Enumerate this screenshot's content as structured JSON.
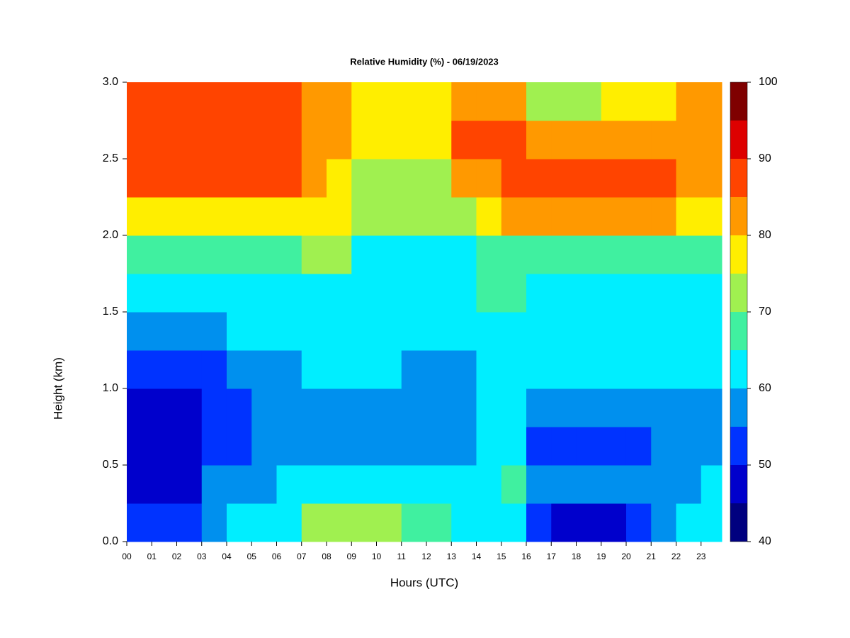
{
  "chart_data": {
    "type": "heatmap",
    "title": "Relative Humidity (%) - 06/19/2023",
    "x_label": "Hours (UTC)",
    "y_label": "Height (km)",
    "x": [
      0,
      1,
      2,
      3,
      4,
      5,
      6,
      7,
      8,
      9,
      10,
      11,
      12,
      13,
      14,
      15,
      16,
      17,
      18,
      19,
      20,
      21,
      22,
      23
    ],
    "y": [
      0,
      0.25,
      0.5,
      0.75,
      1,
      1.25,
      1.5,
      1.75,
      2,
      2.25,
      2.5,
      2.75
    ],
    "z": [
      [
        53,
        53,
        53,
        55,
        62,
        62,
        62,
        70,
        71,
        72,
        70,
        66,
        66,
        64,
        64,
        60,
        50,
        48,
        48,
        48,
        50,
        55,
        62,
        62
      ],
      [
        47,
        47,
        47,
        55,
        58,
        58,
        64,
        64,
        64,
        64,
        64,
        62,
        62,
        62,
        62,
        66,
        55,
        55,
        55,
        55,
        55,
        58,
        58,
        60
      ],
      [
        45,
        45,
        45,
        53,
        52,
        58,
        58,
        58,
        58,
        58,
        58,
        58,
        58,
        58,
        60,
        64,
        53,
        53,
        53,
        53,
        53,
        58,
        58,
        58
      ],
      [
        48,
        48,
        48,
        53,
        53,
        58,
        58,
        58,
        58,
        58,
        58,
        58,
        58,
        58,
        60,
        64,
        56,
        56,
        56,
        56,
        56,
        58,
        58,
        58
      ],
      [
        53,
        53,
        53,
        53,
        58,
        58,
        58,
        60,
        60,
        60,
        60,
        57,
        57,
        57,
        62,
        62,
        60,
        60,
        60,
        60,
        60,
        60,
        60,
        60
      ],
      [
        57,
        57,
        57,
        57,
        62,
        62,
        62,
        62,
        62,
        62,
        62,
        62,
        62,
        62,
        63,
        63,
        62,
        62,
        62,
        62,
        62,
        62,
        62,
        62
      ],
      [
        60,
        60,
        60,
        64,
        64,
        64,
        64,
        63,
        63,
        63,
        63,
        63,
        63,
        63,
        66,
        66,
        64,
        64,
        64,
        64,
        64,
        64,
        64,
        64
      ],
      [
        67,
        67,
        67,
        67,
        67,
        67,
        67,
        70,
        70,
        64,
        64,
        64,
        64,
        64,
        66,
        68,
        68,
        68,
        68,
        68,
        68,
        67,
        67,
        67
      ],
      [
        78,
        78,
        78,
        78,
        78,
        78,
        78,
        76,
        76,
        72,
        72,
        72,
        72,
        72,
        76,
        82,
        82,
        82,
        82,
        82,
        82,
        82,
        78,
        78
      ],
      [
        87,
        87,
        87,
        87,
        87,
        87,
        87,
        82,
        78,
        74,
        74,
        74,
        74,
        80,
        80,
        86,
        86,
        86,
        86,
        86,
        86,
        86,
        82,
        82
      ],
      [
        88,
        88,
        88,
        88,
        88,
        88,
        88,
        80,
        80,
        75,
        75,
        75,
        75,
        85,
        85,
        85,
        80,
        80,
        80,
        80,
        80,
        80,
        82,
        82
      ],
      [
        89,
        89,
        89,
        89,
        89,
        89,
        89,
        82,
        82,
        76,
        76,
        76,
        76,
        84,
        84,
        84,
        70,
        70,
        70,
        78,
        78,
        78,
        82,
        82
      ]
    ],
    "levels": [
      40,
      45,
      50,
      55,
      60,
      65,
      70,
      75,
      80,
      85,
      90,
      95,
      100
    ],
    "colors": [
      "#00007f",
      "#0000cc",
      "#0033ff",
      "#0090ee",
      "#00eeff",
      "#40f0a0",
      "#a0f050",
      "#ffee00",
      "#ff9900",
      "#ff4400",
      "#dd0000",
      "#7f0000"
    ],
    "xlim": [
      0,
      23.83
    ],
    "ylim": [
      0,
      3
    ],
    "xticks": [
      {
        "value": 0,
        "label": "00"
      },
      {
        "value": 1,
        "label": "01"
      },
      {
        "value": 2,
        "label": "02"
      },
      {
        "value": 3,
        "label": "03"
      },
      {
        "value": 4,
        "label": "04"
      },
      {
        "value": 5,
        "label": "05"
      },
      {
        "value": 6,
        "label": "06"
      },
      {
        "value": 7,
        "label": "07"
      },
      {
        "value": 8,
        "label": "08"
      },
      {
        "value": 9,
        "label": "09"
      },
      10,
      11,
      12,
      13,
      14,
      15,
      16,
      17,
      18,
      19,
      20,
      21,
      22,
      23
    ],
    "yticks": [
      {
        "value": 0,
        "label": "0.0"
      },
      0.5,
      {
        "value": 1,
        "label": "1.0"
      },
      1.5,
      {
        "value": 2,
        "label": "2.0"
      },
      2.5,
      {
        "value": 3,
        "label": "3.0"
      }
    ],
    "colorbar_ticks": [
      40,
      50,
      60,
      70,
      80,
      90,
      100
    ]
  }
}
